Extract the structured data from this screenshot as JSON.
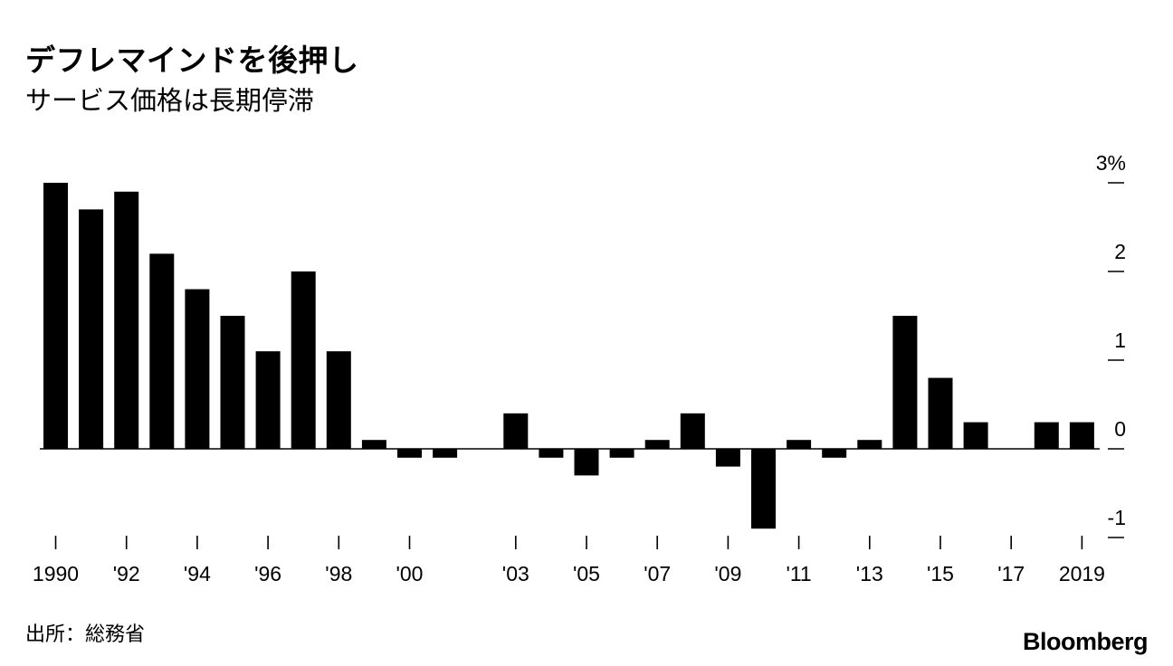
{
  "title": "デフレマインドを後押し",
  "subtitle": "サービス価格は長期停滞",
  "source": "出所：総務省",
  "brand": "Bloomberg",
  "colors": {
    "bar": "#000000",
    "background": "#ffffff",
    "axis": "#000000"
  },
  "chart_data": {
    "type": "bar",
    "categories": [
      1990,
      1991,
      1992,
      1993,
      1994,
      1995,
      1996,
      1997,
      1998,
      1999,
      2000,
      2001,
      2002,
      2003,
      2004,
      2005,
      2006,
      2007,
      2008,
      2009,
      2010,
      2011,
      2012,
      2013,
      2014,
      2015,
      2016,
      2017,
      2018,
      2019
    ],
    "values": [
      3.0,
      2.7,
      2.9,
      2.2,
      1.8,
      1.5,
      1.1,
      2.0,
      1.1,
      0.1,
      -0.1,
      -0.1,
      0.0,
      0.4,
      -0.1,
      -0.3,
      -0.1,
      0.1,
      0.4,
      -0.2,
      -0.9,
      0.1,
      -0.1,
      0.1,
      1.5,
      0.8,
      0.3,
      0.0,
      0.3,
      0.3
    ],
    "xtick_labels": [
      {
        "year": 1990,
        "label": "1990"
      },
      {
        "year": 1992,
        "label": "'92"
      },
      {
        "year": 1994,
        "label": "'94"
      },
      {
        "year": 1996,
        "label": "'96"
      },
      {
        "year": 1998,
        "label": "'98"
      },
      {
        "year": 2000,
        "label": "'00"
      },
      {
        "year": 2003,
        "label": "'03"
      },
      {
        "year": 2005,
        "label": "'05"
      },
      {
        "year": 2007,
        "label": "'07"
      },
      {
        "year": 2009,
        "label": "'09"
      },
      {
        "year": 2011,
        "label": "'11"
      },
      {
        "year": 2013,
        "label": "'13"
      },
      {
        "year": 2015,
        "label": "'15"
      },
      {
        "year": 2017,
        "label": "'17"
      },
      {
        "year": 2019,
        "label": "2019"
      }
    ],
    "yticks": [
      {
        "value": 3,
        "label": "3%"
      },
      {
        "value": 2,
        "label": "2"
      },
      {
        "value": 1,
        "label": "1"
      },
      {
        "value": 0,
        "label": "0"
      },
      {
        "value": -1,
        "label": "-1"
      }
    ],
    "ylim": [
      -1,
      3
    ],
    "title": "デフレマインドを後押し",
    "subtitle": "サービス価格は長期停滞",
    "xlabel": "",
    "ylabel": "",
    "grid": false,
    "legend": "none"
  }
}
